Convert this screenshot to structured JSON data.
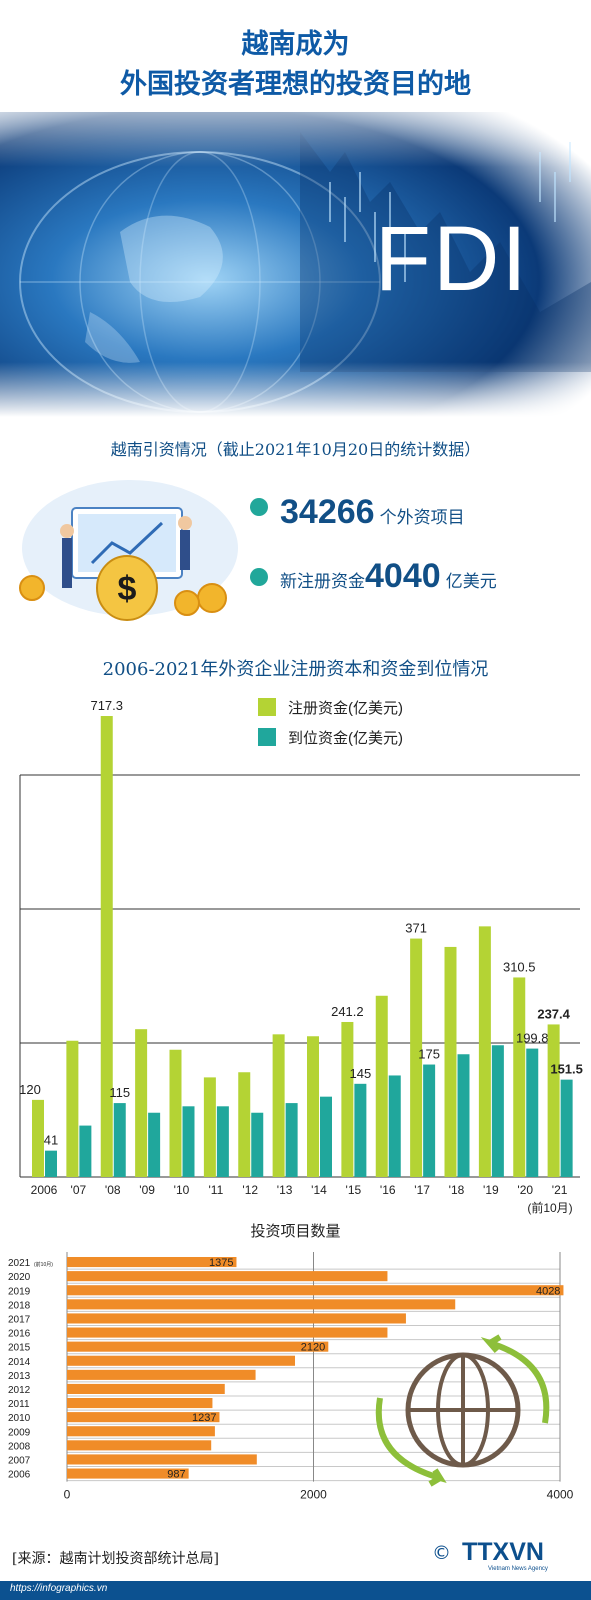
{
  "header": {
    "title_line1": "越南成为",
    "title_line2": "外国投资者理想的投资目的地",
    "banner_text": "FDI"
  },
  "summary": {
    "subtitle": "越南引资情况（截止2021年10月20日的统计数据）",
    "projects_value": "34266",
    "projects_label": "个外资项目",
    "capital_prefix": "新注册资金",
    "capital_value": "4040",
    "capital_suffix": "亿美元"
  },
  "colors": {
    "registered": "#b4d334",
    "disbursed": "#20a79c",
    "projects_bar": "#f08c28",
    "title_blue": "#0e5aa6"
  },
  "chart_data": [
    {
      "type": "bar",
      "title": "2006-2021年外资企业注册资本和资金到位情况",
      "categories": [
        "2006",
        "'07",
        "'08",
        "'09",
        "'10",
        "'11",
        "'12",
        "'13",
        "'14",
        "'15",
        "'16",
        "'17",
        "'18",
        "'19",
        "'20",
        "'21"
      ],
      "x_note": "(前10月)",
      "series": [
        {
          "name": "注册资金(亿美元)",
          "values": [
            120,
            212,
            717.3,
            230,
            198,
            155,
            163,
            222,
            219,
            241.2,
            282,
            371,
            358,
            390,
            310.5,
            237.4
          ],
          "labels": {
            "0": "120",
            "2": "717.3",
            "9": "241.2",
            "11": "371",
            "14": "310.5",
            "15": "237.4"
          }
        },
        {
          "name": "到位资金(亿美元)",
          "values": [
            41,
            80,
            115,
            100,
            110,
            110,
            100,
            115,
            125,
            145,
            158,
            175,
            191,
            205,
            199.8,
            151.5
          ],
          "labels": {
            "0": "41",
            "2": "115",
            "9": "145",
            "11": "175",
            "14": "199.8",
            "15": "151.5"
          }
        }
      ],
      "ylim": [
        0,
        750
      ],
      "legend": "top"
    },
    {
      "type": "bar",
      "orientation": "horizontal",
      "title": "投资项目数量",
      "categories": [
        "2021",
        "2020",
        "2019",
        "2018",
        "2017",
        "2016",
        "2015",
        "2014",
        "2013",
        "2012",
        "2011",
        "2010",
        "2009",
        "2008",
        "2007",
        "2006"
      ],
      "category_notes": {
        "2021": "(前10月)"
      },
      "values": [
        1375,
        2600,
        4028,
        3150,
        2750,
        2600,
        2120,
        1850,
        1530,
        1280,
        1180,
        1237,
        1200,
        1170,
        1540,
        987
      ],
      "labels": {
        "2021": "1375",
        "2019": "4028",
        "2015": "2120",
        "2010": "1237",
        "2006": "987"
      },
      "xticks": [
        "0",
        "2000",
        "4000"
      ],
      "xlim": [
        0,
        4000
      ]
    }
  ],
  "footer": {
    "source": "[来源：越南计划投资部统计总局]",
    "url": "https://infographics.vn",
    "copyright": "©",
    "logo": "TTXVN",
    "logo_sub": "Vietnam News Agency"
  }
}
